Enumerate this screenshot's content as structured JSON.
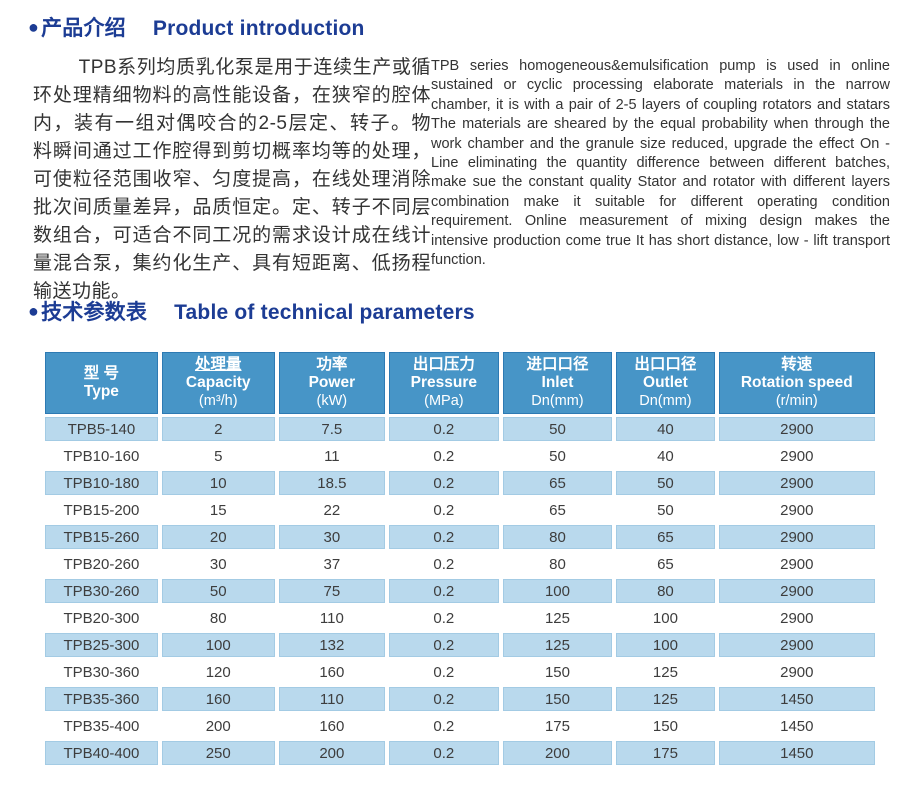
{
  "colors": {
    "heading_navy": "#1c3c94",
    "table_header_blue": "#4795c7",
    "table_header_border": "#2d7ab3",
    "row_alt_blue": "#b9d9ed",
    "body_text": "#333333"
  },
  "product_intro": {
    "bullet": "●",
    "title_zh": "产品介绍",
    "title_en": "Product introduction",
    "paragraph_zh": "TPB系列均质乳化泵是用于连续生产或循环处理精细物料的高性能设备，在狭窄的腔体内，装有一组对偶咬合的2-5层定、转子。物料瞬间通过工作腔得到剪切概率均等的处理，可使粒径范围收窄、匀度提高，在线处理消除批次间质量差异，品质恒定。定、转子不同层数组合，可适合不同工况的需求设计成在线计量混合泵，集约化生产、具有短距离、低扬程输送功能。",
    "paragraph_en": "TPB series homogeneous&emulsification pump is used in online sustained or cyclic processing elaborate materials in the narrow chamber, it is with a pair of 2-5 layers of coupling rotators and statars The materials are sheared by the equal probability when through the work chamber and the granule size reduced, upgrade the effect On - Line eliminating the quantity difference between different batches, make sue the constant quality Stator and rotator with different layers combination make it suitable for different operating condition requirement. Online measurement of mixing design makes the intensive production come true It has short distance, low - lift transport function."
  },
  "tech_params": {
    "bullet": "●",
    "title_zh": "技术参数表",
    "title_en": "Table of technical parameters"
  },
  "table": {
    "columns": [
      {
        "key": "type",
        "zh": "型 号",
        "en": "Type",
        "unit": ""
      },
      {
        "key": "capacity",
        "zh": "处理量",
        "en": "Capacity",
        "unit": "(m³/h)",
        "underline": true
      },
      {
        "key": "power",
        "zh": "功率",
        "en": "Power",
        "unit": "(kW)"
      },
      {
        "key": "pressure",
        "zh": "出口压力",
        "en": "Pressure",
        "unit": "(MPa)"
      },
      {
        "key": "inlet",
        "zh": "进口口径",
        "en": "Inlet",
        "unit": "Dn(mm)"
      },
      {
        "key": "outlet",
        "zh": "出口口径",
        "en": "Outlet",
        "unit": "Dn(mm)"
      },
      {
        "key": "rotation_speed",
        "zh": "转速",
        "en": "Rotation speed",
        "unit": "(r/min)"
      }
    ],
    "rows": [
      [
        "TPB5-140",
        "2",
        "7.5",
        "0.2",
        "50",
        "40",
        "2900"
      ],
      [
        "TPB10-160",
        "5",
        "11",
        "0.2",
        "50",
        "40",
        "2900"
      ],
      [
        "TPB10-180",
        "10",
        "18.5",
        "0.2",
        "65",
        "50",
        "2900"
      ],
      [
        "TPB15-200",
        "15",
        "22",
        "0.2",
        "65",
        "50",
        "2900"
      ],
      [
        "TPB15-260",
        "20",
        "30",
        "0.2",
        "80",
        "65",
        "2900"
      ],
      [
        "TPB20-260",
        "30",
        "37",
        "0.2",
        "80",
        "65",
        "2900"
      ],
      [
        "TPB30-260",
        "50",
        "75",
        "0.2",
        "100",
        "80",
        "2900"
      ],
      [
        "TPB20-300",
        "80",
        "110",
        "0.2",
        "125",
        "100",
        "2900"
      ],
      [
        "TPB25-300",
        "100",
        "132",
        "0.2",
        "125",
        "100",
        "2900"
      ],
      [
        "TPB30-360",
        "120",
        "160",
        "0.2",
        "150",
        "125",
        "2900"
      ],
      [
        "TPB35-360",
        "160",
        "110",
        "0.2",
        "150",
        "125",
        "1450"
      ],
      [
        "TPB35-400",
        "200",
        "160",
        "0.2",
        "175",
        "150",
        "1450"
      ],
      [
        "TPB40-400",
        "250",
        "200",
        "0.2",
        "200",
        "175",
        "1450"
      ]
    ]
  }
}
